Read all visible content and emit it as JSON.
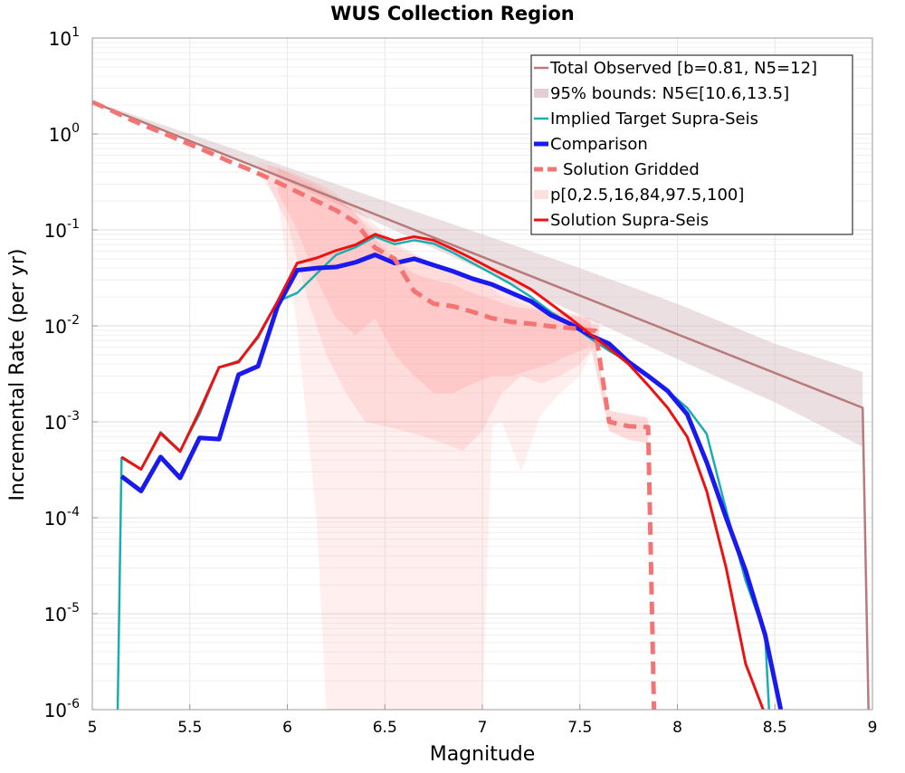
{
  "chart_data": {
    "type": "line",
    "title": "WUS Collection Region",
    "xlabel": "Magnitude",
    "ylabel": "Incremental Rate (per yr)",
    "xlim": [
      5,
      9
    ],
    "ylim": [
      1e-06,
      10
    ],
    "yscale": "log",
    "grid": true,
    "legend_position": "top-right",
    "x_ticks": [
      {
        "value": 5,
        "label": "5"
      },
      {
        "value": 5.5,
        "label": "5.5"
      },
      {
        "value": 6,
        "label": "6"
      },
      {
        "value": 6.5,
        "label": "6.5"
      },
      {
        "value": 7,
        "label": "7"
      },
      {
        "value": 7.5,
        "label": "7.5"
      },
      {
        "value": 8,
        "label": "8"
      },
      {
        "value": 8.5,
        "label": "8.5"
      },
      {
        "value": 9,
        "label": "9"
      }
    ],
    "y_ticks": [
      {
        "value": 1e-06,
        "base": "10",
        "exp": "-6"
      },
      {
        "value": 1e-05,
        "base": "10",
        "exp": "-5"
      },
      {
        "value": 0.0001,
        "base": "10",
        "exp": "-4"
      },
      {
        "value": 0.001,
        "base": "10",
        "exp": "-3"
      },
      {
        "value": 0.01,
        "base": "10",
        "exp": "-2"
      },
      {
        "value": 0.1,
        "base": "10",
        "exp": "-1"
      },
      {
        "value": 1,
        "base": "10",
        "exp": "0"
      },
      {
        "value": 10,
        "base": "10",
        "exp": "1"
      }
    ],
    "bands": [
      {
        "legend_index": 1,
        "color": "#d8bfc3",
        "opacity": 0.5,
        "x": [
          5,
          5.5,
          6,
          6.5,
          7,
          7.5,
          8,
          8.5,
          8.95
        ],
        "lower": [
          2.1,
          0.9,
          0.32,
          0.11,
          0.038,
          0.013,
          0.0045,
          0.0016,
          0.00055
        ],
        "upper": [
          2.2,
          1.0,
          0.45,
          0.2,
          0.09,
          0.04,
          0.017,
          0.0065,
          0.0033
        ]
      },
      {
        "legend_index": 5,
        "color": "#ff9a9a",
        "opacity": 0.16,
        "x": [
          5.85,
          5.95,
          6.05,
          6.15,
          6.2,
          6.3,
          6.4,
          6.5,
          6.6,
          6.7,
          6.8,
          6.9,
          7.0,
          7.05,
          7.1,
          7.2,
          7.3,
          7.4,
          7.5,
          7.6
        ],
        "lower": [
          0.4,
          0.2,
          0.01,
          0.0001,
          1e-06,
          1e-06,
          1e-06,
          1e-06,
          1e-06,
          1e-06,
          1e-06,
          1e-06,
          1e-06,
          0.0009,
          0.001,
          0.0003,
          0.0012,
          0.002,
          0.003,
          0.008
        ],
        "upper": [
          0.5,
          0.45,
          0.38,
          0.3,
          0.25,
          0.18,
          0.12,
          0.08,
          0.06,
          0.05,
          0.04,
          0.035,
          0.03,
          0.025,
          0.02,
          0.017,
          0.015,
          0.013,
          0.012,
          0.01
        ]
      },
      {
        "legend_index": 5,
        "color": "#ff9a9a",
        "opacity": 0.22,
        "x": [
          5.9,
          6.0,
          6.1,
          6.2,
          6.3,
          6.4,
          6.5,
          6.6,
          6.7,
          6.8,
          6.9,
          7.0,
          7.1,
          7.2,
          7.3,
          7.4,
          7.5,
          7.6
        ],
        "lower": [
          0.3,
          0.12,
          0.02,
          0.005,
          0.002,
          0.001,
          0.0009,
          0.0008,
          0.0007,
          0.0006,
          0.0005,
          0.0008,
          0.002,
          0.003,
          0.0025,
          0.003,
          0.004,
          0.007
        ],
        "upper": [
          0.48,
          0.4,
          0.34,
          0.28,
          0.2,
          0.14,
          0.09,
          0.065,
          0.05,
          0.04,
          0.033,
          0.028,
          0.023,
          0.019,
          0.016,
          0.014,
          0.013,
          0.011
        ]
      },
      {
        "legend_index": 5,
        "color": "#ff9a9a",
        "opacity": 0.28,
        "x": [
          5.95,
          6.05,
          6.15,
          6.25,
          6.35,
          6.45,
          6.55,
          6.65,
          6.75,
          6.85,
          6.95,
          7.05,
          7.15,
          7.25,
          7.35,
          7.45,
          7.55
        ],
        "lower": [
          0.25,
          0.1,
          0.03,
          0.012,
          0.008,
          0.012,
          0.005,
          0.003,
          0.002,
          0.002,
          0.0025,
          0.003,
          0.003,
          0.0035,
          0.004,
          0.005,
          0.006
        ],
        "upper": [
          0.45,
          0.35,
          0.28,
          0.22,
          0.15,
          0.08,
          0.05,
          0.035,
          0.03,
          0.027,
          0.022,
          0.019,
          0.016,
          0.015,
          0.014,
          0.013,
          0.012
        ]
      },
      {
        "legend_index": 5,
        "color": "#ff9a9a",
        "opacity": 0.35,
        "x": [
          7.55,
          7.65,
          7.75,
          7.85
        ],
        "lower": [
          0.007,
          0.0008,
          0.00065,
          0.0006
        ],
        "upper": [
          0.012,
          0.0013,
          0.0012,
          0.0011
        ]
      }
    ],
    "series": [
      {
        "name": "Total Observed [b=0.81, N5=12]",
        "color": "#b87a7a",
        "width": 2.5,
        "dash": "",
        "x": [
          5,
          8.95,
          8.95,
          8.98
        ],
        "y": [
          2.15,
          0.0014,
          0.0014,
          1e-06
        ]
      },
      {
        "name": "95% bounds: N5∈[10.6,13.5]",
        "color": "#e3cfd2",
        "width": 10,
        "dash": "",
        "legend_only": true,
        "x": [],
        "y": []
      },
      {
        "name": "Implied Target Supra-Seis",
        "color": "#1aaeae",
        "width": 2.5,
        "dash": "",
        "x": [
          5.13,
          5.15,
          5.25,
          5.35,
          5.45,
          5.55,
          5.65,
          5.75,
          5.85,
          5.95,
          6.05,
          6.15,
          6.25,
          6.35,
          6.45,
          6.55,
          6.65,
          6.75,
          6.85,
          6.95,
          7.05,
          7.15,
          7.25,
          7.35,
          7.45,
          7.55,
          7.65,
          7.75,
          7.85,
          7.95,
          8.05,
          8.15,
          8.25,
          8.35,
          8.45,
          8.47
        ],
        "y": [
          1e-06,
          0.00042,
          0.00032,
          0.00078,
          0.0005,
          0.0012,
          0.0037,
          0.0043,
          0.0075,
          0.018,
          0.022,
          0.035,
          0.055,
          0.066,
          0.085,
          0.071,
          0.078,
          0.072,
          0.058,
          0.045,
          0.035,
          0.027,
          0.02,
          0.014,
          0.0105,
          0.0075,
          0.0055,
          0.0042,
          0.003,
          0.0021,
          0.0014,
          0.00075,
          0.00012,
          2.2e-05,
          6e-06,
          1e-06
        ]
      },
      {
        "name": "Comparison",
        "color": "#1a1aee",
        "width": 5,
        "dash": "",
        "x": [
          5.15,
          5.25,
          5.35,
          5.45,
          5.55,
          5.65,
          5.75,
          5.85,
          5.95,
          6.05,
          6.15,
          6.25,
          6.35,
          6.45,
          6.55,
          6.65,
          6.75,
          6.85,
          6.95,
          7.05,
          7.15,
          7.25,
          7.35,
          7.45,
          7.55,
          7.65,
          7.75,
          7.85,
          7.95,
          8.05,
          8.15,
          8.25,
          8.35,
          8.45,
          8.53
        ],
        "y": [
          0.00027,
          0.00019,
          0.00043,
          0.00026,
          0.00068,
          0.00066,
          0.0031,
          0.0038,
          0.016,
          0.038,
          0.04,
          0.041,
          0.046,
          0.055,
          0.045,
          0.05,
          0.043,
          0.037,
          0.031,
          0.027,
          0.022,
          0.018,
          0.013,
          0.0105,
          0.008,
          0.0065,
          0.0042,
          0.003,
          0.0021,
          0.0012,
          0.00038,
          0.0001,
          2.8e-05,
          6e-06,
          1e-06
        ]
      },
      {
        "name": "Solution Gridded",
        "color": "#f47474",
        "width": 5,
        "dash": "14,8",
        "x": [
          5,
          5.1,
          5.2,
          5.3,
          5.4,
          5.5,
          5.6,
          5.7,
          5.8,
          5.9,
          6.0,
          6.05,
          6.15,
          6.25,
          6.35,
          6.45,
          6.55,
          6.65,
          6.75,
          6.85,
          6.95,
          7.05,
          7.15,
          7.25,
          7.35,
          7.45,
          7.55,
          7.58,
          7.65,
          7.75,
          7.85,
          7.87,
          7.88
        ],
        "y": [
          2.15,
          1.75,
          1.4,
          1.15,
          0.95,
          0.78,
          0.64,
          0.52,
          0.43,
          0.35,
          0.28,
          0.25,
          0.2,
          0.16,
          0.12,
          0.065,
          0.05,
          0.023,
          0.017,
          0.016,
          0.014,
          0.012,
          0.011,
          0.0105,
          0.0099,
          0.0095,
          0.009,
          0.0089,
          0.001,
          0.0009,
          0.00088,
          1e-05,
          1e-06
        ]
      },
      {
        "name": "p[0,2.5,16,84,97.5,100]",
        "color": "#ffe0e0",
        "width": 10,
        "dash": "",
        "legend_only": true,
        "x": [],
        "y": []
      },
      {
        "name": "Solution Supra-Seis",
        "color": "#ee1111",
        "width": 3,
        "dash": "",
        "x": [
          5.15,
          5.25,
          5.35,
          5.45,
          5.55,
          5.65,
          5.75,
          5.85,
          5.95,
          6.05,
          6.15,
          6.25,
          6.35,
          6.45,
          6.55,
          6.65,
          6.75,
          6.85,
          6.95,
          7.05,
          7.15,
          7.25,
          7.35,
          7.45,
          7.55,
          7.65,
          7.75,
          7.85,
          7.95,
          8.05,
          8.15,
          8.25,
          8.35,
          8.44
        ],
        "y": [
          0.00043,
          0.00032,
          0.00076,
          0.00049,
          0.0013,
          0.0037,
          0.0042,
          0.0078,
          0.018,
          0.045,
          0.051,
          0.061,
          0.07,
          0.09,
          0.077,
          0.085,
          0.078,
          0.063,
          0.05,
          0.039,
          0.031,
          0.024,
          0.017,
          0.012,
          0.0083,
          0.0058,
          0.004,
          0.0024,
          0.0014,
          0.0007,
          0.00019,
          3e-05,
          3e-06,
          1e-06
        ]
      }
    ]
  }
}
